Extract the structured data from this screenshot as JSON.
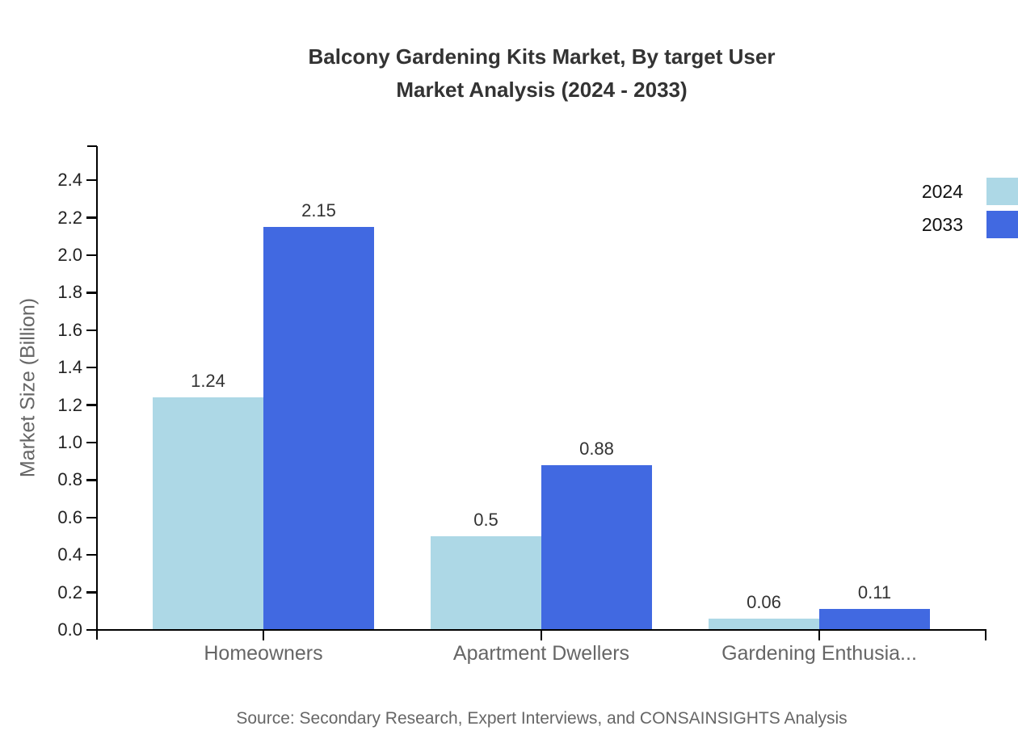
{
  "chart_data": {
    "type": "bar",
    "title_line1": "Balcony Gardening Kits Market, By target User",
    "title_line2": "Market Analysis (2024 - 2033)",
    "categories": [
      "Homeowners",
      "Apartment Dwellers",
      "Gardening Enthusia..."
    ],
    "series": [
      {
        "name": "2024",
        "color": "#ADD8E6",
        "values": [
          1.24,
          0.5,
          0.06
        ]
      },
      {
        "name": "2033",
        "color": "#4169E1",
        "values": [
          2.15,
          0.88,
          0.11
        ]
      }
    ],
    "ylabel": "Market Size (Billion)",
    "ylim": [
      0.0,
      2.4
    ],
    "ytick_step": 0.2,
    "ytick_labels": [
      "0.0",
      "0.2",
      "0.4",
      "0.6",
      "0.8",
      "1.0",
      "1.2",
      "1.4",
      "1.6",
      "1.8",
      "2.0",
      "2.2",
      "2.4"
    ],
    "value_labels": [
      "1.24",
      "2.15",
      "0.5",
      "0.88",
      "0.06",
      "0.11"
    ],
    "grid": false,
    "legend_position": "top-right",
    "source": "Source: Secondary Research, Expert Interviews, and CONSAINSIGHTS Analysis",
    "colors": {
      "axis": "#000000",
      "ytick_label": "#222222",
      "value_label": "#333333",
      "category_label": "#666666",
      "title": "#333333",
      "muted_text": "#666666",
      "background": "#ffffff"
    }
  }
}
